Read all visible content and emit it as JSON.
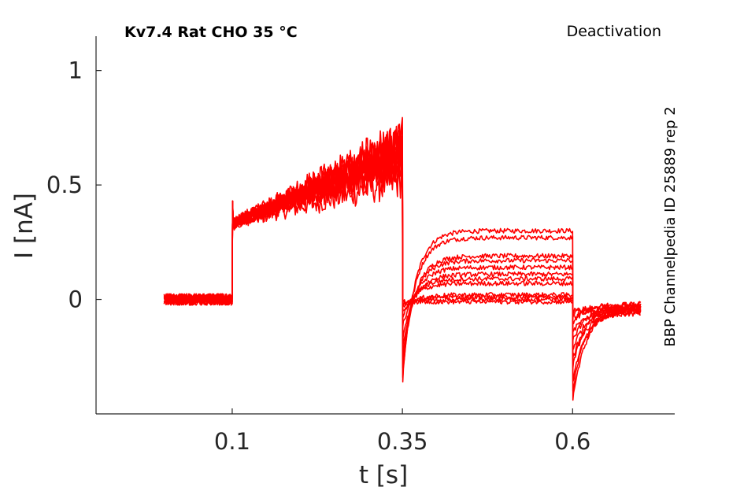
{
  "chart_data": {
    "type": "line",
    "title": "Kv7.4  Rat  CHO  35 °C",
    "protocol": "Deactivation",
    "source_label": "BBP Channelpedia ID 25889 rep 2",
    "xlabel": "t [s]",
    "ylabel": "I [nA]",
    "xlim": [
      -0.1,
      0.75
    ],
    "ylim": [
      -0.5,
      1.15
    ],
    "x_ticks": [
      0.1,
      0.35,
      0.6
    ],
    "x_tick_labels": [
      "0.1",
      "0.35",
      "0.6"
    ],
    "y_ticks": [
      0,
      0.5,
      1
    ],
    "y_tick_labels": [
      "0",
      "0.5",
      "1"
    ],
    "grid": false,
    "line_color": "#ff0000",
    "protocol_times": {
      "trace_start": 0.0,
      "activation_step_start": 0.1,
      "deactivation_step_start": 0.35,
      "return_step_start": 0.6,
      "trace_end": 0.7
    },
    "series": [
      {
        "values": {
          "holding": 0.0,
          "activation_start": 0.33,
          "activation_end": 0.52,
          "deactivation_steady": 0.3,
          "deactivation_peak": -0.36,
          "return_peak": -0.44,
          "return_end": -0.04
        }
      },
      {
        "values": {
          "holding": 0.0,
          "activation_start": 0.32,
          "activation_end": 0.58,
          "deactivation_steady": 0.27,
          "deactivation_peak": -0.34,
          "return_peak": -0.4,
          "return_end": -0.03
        }
      },
      {
        "values": {
          "holding": 0.0,
          "activation_start": 0.33,
          "activation_end": 0.6,
          "deactivation_steady": 0.19,
          "deactivation_peak": -0.3,
          "return_peak": -0.36,
          "return_end": -0.05
        }
      },
      {
        "values": {
          "holding": 0.0,
          "activation_start": 0.34,
          "activation_end": 0.63,
          "deactivation_steady": 0.17,
          "deactivation_peak": -0.26,
          "return_peak": -0.3,
          "return_end": -0.02
        }
      },
      {
        "values": {
          "holding": 0.0,
          "activation_start": 0.33,
          "activation_end": 0.61,
          "deactivation_steady": 0.14,
          "deactivation_peak": -0.22,
          "return_peak": -0.26,
          "return_end": -0.06
        }
      },
      {
        "values": {
          "holding": 0.0,
          "activation_start": 0.32,
          "activation_end": 0.66,
          "deactivation_steady": 0.11,
          "deactivation_peak": -0.18,
          "return_peak": -0.22,
          "return_end": -0.04
        }
      },
      {
        "values": {
          "holding": 0.0,
          "activation_start": 0.34,
          "activation_end": 0.62,
          "deactivation_steady": 0.09,
          "deactivation_peak": -0.12,
          "return_peak": -0.18,
          "return_end": -0.03
        }
      },
      {
        "values": {
          "holding": 0.0,
          "activation_start": 0.33,
          "activation_end": 0.68,
          "deactivation_steady": 0.07,
          "deactivation_peak": -0.08,
          "return_peak": -0.14,
          "return_end": -0.05
        }
      },
      {
        "values": {
          "holding": 0.0,
          "activation_start": 0.33,
          "activation_end": 0.64,
          "deactivation_steady": 0.02,
          "deactivation_peak": -0.05,
          "return_peak": -0.1,
          "return_end": -0.02
        }
      },
      {
        "values": {
          "holding": 0.0,
          "activation_start": 0.32,
          "activation_end": 0.7,
          "deactivation_steady": 0.01,
          "deactivation_peak": -0.03,
          "return_peak": -0.08,
          "return_end": -0.04
        }
      },
      {
        "values": {
          "holding": 0.0,
          "activation_start": 0.34,
          "activation_end": 0.66,
          "deactivation_steady": 0.0,
          "deactivation_peak": -0.02,
          "return_peak": -0.06,
          "return_end": -0.03
        }
      },
      {
        "values": {
          "holding": 0.0,
          "activation_start": 0.33,
          "activation_end": 0.72,
          "deactivation_steady": -0.01,
          "deactivation_peak": -0.01,
          "return_peak": -0.05,
          "return_end": -0.05
        }
      }
    ]
  }
}
